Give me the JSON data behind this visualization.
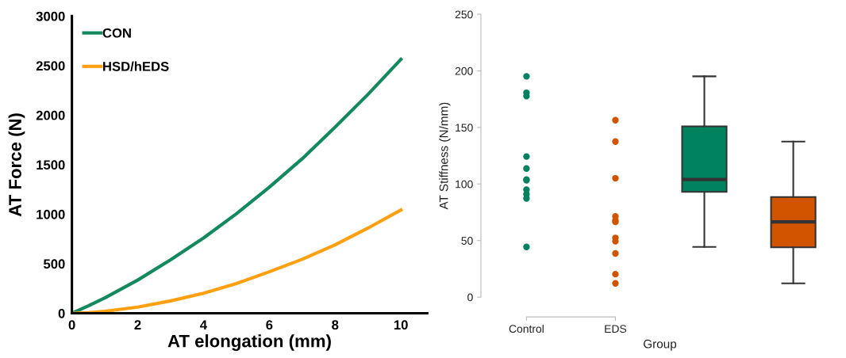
{
  "chart_data": [
    {
      "type": "line",
      "xlabel": "AT elongation (mm)",
      "ylabel": "AT Force (N)",
      "xlim": [
        0,
        10.8
      ],
      "xticks": [
        0,
        2,
        4,
        6,
        8,
        10
      ],
      "ylim": [
        0,
        3000
      ],
      "yticks": [
        0,
        500,
        1000,
        1500,
        2000,
        2500,
        3000
      ],
      "grid": false,
      "legend": "top left",
      "marker": "none",
      "line_style": "solid",
      "x": [
        0,
        0.5,
        1,
        2,
        3,
        4,
        5,
        6,
        7,
        8,
        9,
        10
      ],
      "series": [
        {
          "name": "CON",
          "color": "#138a5e",
          "values": [
            0,
            75,
            155,
            335,
            540,
            760,
            1005,
            1272,
            1560,
            1879,
            2210,
            2564
          ]
        },
        {
          "name": "HSD/hEDS",
          "color": "#ffa010",
          "values": [
            0,
            5,
            20,
            62,
            125,
            201,
            300,
            419,
            545,
            690,
            860,
            1043
          ]
        }
      ]
    },
    {
      "type": "scatter",
      "xlabel": "Group",
      "ylabel": "AT Stiffness (N/mm)",
      "ylim": [
        0,
        250
      ],
      "yticks": [
        0,
        50,
        100,
        150,
        200,
        250
      ],
      "grid": false,
      "categories": [
        "Control",
        "EDS",
        null,
        null
      ],
      "series": [
        {
          "type": "scatter",
          "color": "#00825f",
          "x": [
            "Control",
            "Control",
            "Control",
            "Control",
            "Control",
            "Control",
            "Control",
            "Control",
            "Control",
            "Control",
            "Control"
          ],
          "values": [
            195.2,
            180.7,
            177.7,
            124.3,
            113.7,
            104,
            103.3,
            95,
            91,
            87.3,
            44.4
          ]
        },
        {
          "type": "scatter",
          "color": "#d35400",
          "x": [
            "EDS",
            "EDS",
            "EDS",
            "EDS",
            "EDS",
            "EDS",
            "EDS",
            "EDS",
            "EDS",
            "EDS",
            "EDS"
          ],
          "values": [
            156.4,
            137.5,
            105.1,
            71.4,
            67.9,
            66.5,
            52.4,
            49.4,
            38.6,
            20.3,
            12.2
          ]
        },
        {
          "type": "box",
          "colors": [
            null,
            null,
            "#00825f",
            "#d35400"
          ],
          "boxes": [
            null,
            null,
            {
              "low": 44.4,
              "q1": 93,
              "median": 104,
              "q3": 151,
              "high": 195.2
            },
            {
              "low": 12.2,
              "q1": 44,
              "median": 66.5,
              "q3": 88.5,
              "high": 137.5
            }
          ]
        }
      ]
    }
  ]
}
